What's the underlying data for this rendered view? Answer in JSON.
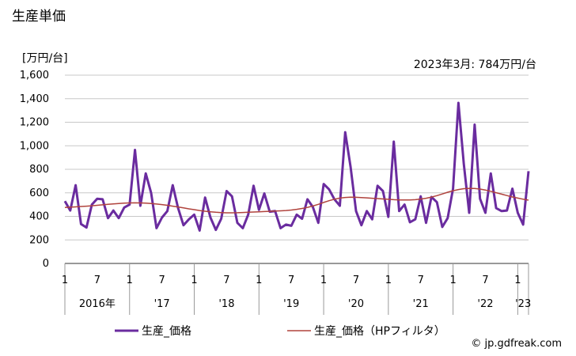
{
  "header": {
    "title": "生産単価",
    "unit": "[万円/台]",
    "annotation": "2023年3月: 784万円/台"
  },
  "footer": {
    "source": "© jp.gdfreak.com"
  },
  "colors": {
    "production": "#6a2c9f",
    "hp_filter": "#b0433d",
    "grid": "#c8c8c8"
  },
  "chart_data": {
    "type": "line",
    "ylim": [
      0,
      1600
    ],
    "yticks": [
      "0",
      "200",
      "400",
      "600",
      "800",
      "1,000",
      "1,200",
      "1,400",
      "1,600"
    ],
    "x_month_labels": [
      "1",
      "7",
      "1",
      "7",
      "1",
      "7",
      "1",
      "7",
      "1",
      "7",
      "1",
      "7",
      "1",
      "7",
      "1"
    ],
    "x_year_labels": [
      "2016年",
      "'17",
      "'18",
      "'19",
      "'20",
      "'21",
      "'22",
      "'23"
    ],
    "grid": true,
    "legend_position": "bottom",
    "series": [
      {
        "name": "生産_価格",
        "values": [
          530,
          450,
          665,
          335,
          305,
          500,
          550,
          545,
          385,
          450,
          385,
          475,
          500,
          965,
          490,
          765,
          600,
          300,
          390,
          445,
          665,
          470,
          325,
          375,
          415,
          280,
          560,
          390,
          285,
          380,
          615,
          570,
          345,
          300,
          415,
          660,
          455,
          595,
          440,
          445,
          300,
          330,
          320,
          415,
          380,
          545,
          480,
          345,
          675,
          630,
          545,
          490,
          1115,
          820,
          445,
          325,
          445,
          375,
          660,
          615,
          395,
          1035,
          445,
          500,
          350,
          375,
          570,
          345,
          565,
          520,
          310,
          385,
          635,
          1365,
          845,
          430,
          1180,
          550,
          430,
          765,
          470,
          445,
          450,
          635,
          430,
          330,
          784
        ]
      },
      {
        "name": "生産_価格（HPフィルタ）",
        "values": [
          475,
          478,
          481,
          484,
          487,
          490,
          494,
          498,
          502,
          506,
          509,
          512,
          514,
          515,
          514,
          512,
          509,
          505,
          500,
          494,
          487,
          480,
          472,
          464,
          457,
          450,
          444,
          439,
          435,
          432,
          430,
          430,
          431,
          433,
          435,
          437,
          439,
          441,
          443,
          445,
          447,
          450,
          454,
          460,
          467,
          476,
          488,
          502,
          518,
          533,
          546,
          555,
          561,
          563,
          562,
          560,
          557,
          554,
          551,
          548,
          545,
          542,
          540,
          539,
          540,
          542,
          547,
          554,
          564,
          576,
          590,
          605,
          618,
          628,
          635,
          638,
          637,
          632,
          624,
          613,
          601,
          589,
          577,
          565,
          555,
          546,
          538
        ]
      }
    ]
  }
}
